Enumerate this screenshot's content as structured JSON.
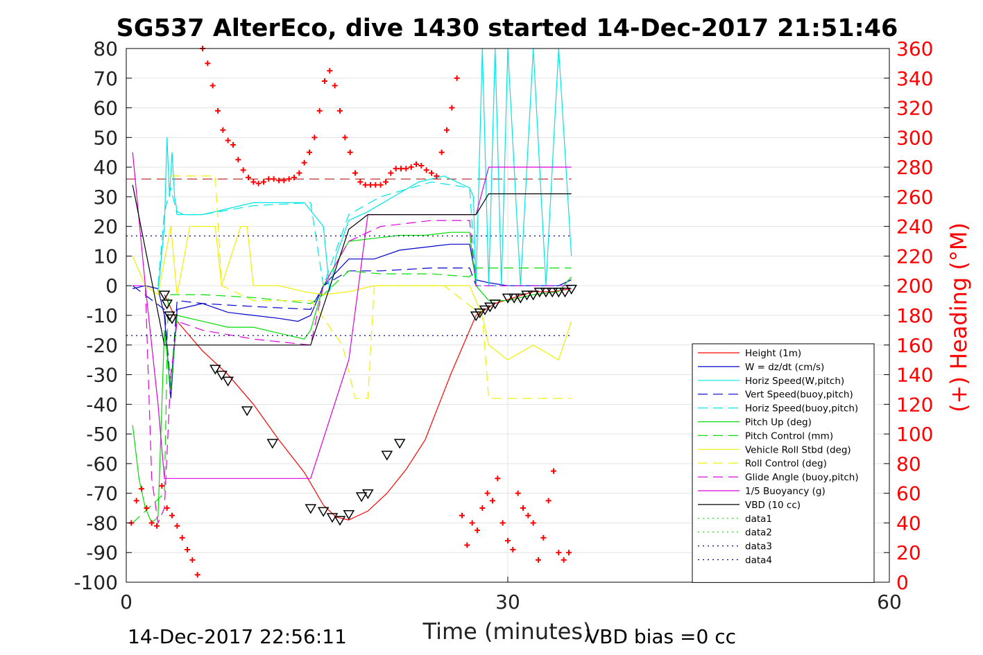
{
  "chart_data": {
    "type": "line",
    "title": "SG537 AlterEco, dive 1430 started 14-Dec-2017 21:51:46",
    "xlabel": "Time (minutes)",
    "ylabel": "",
    "y2label": "(+) Heading (°M)",
    "xlim": [
      0,
      60
    ],
    "ylim": [
      -100,
      80
    ],
    "y2lim": [
      0,
      360
    ],
    "xticks": [
      "0",
      "30",
      "60"
    ],
    "yticks": [
      "80",
      "70",
      "60",
      "50",
      "40",
      "30",
      "20",
      "10",
      "0",
      "-10",
      "-20",
      "-30",
      "-40",
      "-50",
      "-60",
      "-70",
      "-80",
      "-90",
      "-100"
    ],
    "y2ticks": [
      "360",
      "340",
      "320",
      "300",
      "280",
      "260",
      "240",
      "220",
      "200",
      "180",
      "160",
      "140",
      "120",
      "100",
      "80",
      "60",
      "40",
      "20",
      "0"
    ],
    "grid": true,
    "legend_position": "lower-right",
    "footer_left": "14-Dec-2017 22:56:11",
    "footer_right": "VBD bias =0 cc",
    "colors": {
      "red": "#ff0000",
      "blue": "#0000cc",
      "cyan": "#00e5e5",
      "green": "#00dd00",
      "yellow": "#f0f000",
      "magenta": "#dd00dd",
      "black": "#000000",
      "darkred": "#aa0000",
      "navy": "#000088"
    },
    "series": [
      {
        "name": "Height (1m)",
        "color": "#ff0000",
        "dash": "solid",
        "x": [
          3.0,
          4.0,
          6.0,
          8.0,
          10.0,
          12.0,
          14.0,
          15.5,
          16.5,
          17.5,
          19.0,
          20.5,
          22.0,
          23.5,
          25.5,
          27.5,
          29.0,
          30.5,
          32.0,
          33.5,
          35.0
        ],
        "y": [
          -3,
          -12,
          -22,
          -30,
          -40,
          -52,
          -63,
          -74,
          -78,
          -79,
          -76,
          -70,
          -62,
          -52,
          -30,
          -10,
          -6,
          -4,
          -2,
          -2,
          -1
        ]
      },
      {
        "name": "W = dz/dt (cm/s)",
        "color": "#0000cc",
        "dash": "solid",
        "x": [
          0.5,
          1.5,
          2.5,
          3.0,
          3.5,
          4.0,
          6.0,
          8.0,
          10.0,
          12.0,
          13.5,
          14.5,
          15.5,
          17.5,
          19.5,
          21.5,
          23.5,
          25.5,
          27.0,
          27.5,
          28.5,
          30.0,
          32.0,
          34.0,
          35.0
        ],
        "y": [
          -1,
          0,
          -1,
          -10,
          -38,
          -8,
          -6,
          -9,
          -10,
          -11,
          -12,
          -10,
          0,
          9,
          9,
          12,
          13,
          14,
          14,
          2,
          1,
          0,
          0,
          0,
          2
        ]
      },
      {
        "name": "Horiz Speed(W,pitch)",
        "color": "#00e5e5",
        "dash": "solid",
        "x": [
          2.5,
          3.0,
          3.2,
          3.4,
          3.6,
          3.8,
          4.0,
          4.5,
          6.0,
          8.0,
          10.0,
          12.0,
          14.0,
          15.5,
          16.0,
          16.5,
          17.5,
          19.0,
          21.0,
          23.0,
          25.0,
          27.0,
          27.3,
          27.5,
          28.0,
          28.5,
          29.0,
          29.5,
          30.0,
          31.0,
          32.0,
          33.0,
          34.0,
          35.0
        ],
        "y": [
          -2,
          20,
          50,
          30,
          45,
          30,
          25,
          24,
          24,
          26,
          28,
          28,
          28,
          20,
          -2,
          10,
          22,
          25,
          30,
          35,
          37,
          33,
          30,
          0,
          80,
          0,
          80,
          0,
          80,
          0,
          80,
          0,
          80,
          10
        ]
      },
      {
        "name": "Vert Speed(buoy,pitch)",
        "color": "#0000cc",
        "dash": "dash",
        "x": [
          0.5,
          3.0,
          3.5,
          4.0,
          6.0,
          10.0,
          14.5,
          15.5,
          17.5,
          20.0,
          24.0,
          27.0,
          27.5,
          30.0,
          35.0
        ],
        "y": [
          0,
          -8,
          -35,
          -5,
          -6,
          -7,
          -8,
          0,
          5,
          5,
          6,
          6,
          0,
          0,
          0
        ]
      },
      {
        "name": "Horiz Speed(buoy,pitch)",
        "color": "#00e5e5",
        "dash": "dash",
        "x": [
          2.5,
          3.0,
          3.5,
          4.0,
          6.0,
          10.0,
          14.5,
          15.5,
          17.5,
          20.0,
          24.0,
          27.0,
          27.5,
          30.0,
          35.0
        ],
        "y": [
          0,
          25,
          33,
          24,
          24,
          27,
          28,
          0,
          24,
          30,
          35,
          33,
          0,
          0,
          0
        ]
      },
      {
        "name": "Pitch Up (deg)",
        "color": "#00dd00",
        "dash": "solid",
        "x": [
          0.5,
          1.0,
          1.5,
          2.0,
          2.5,
          3.0,
          3.5,
          4.0,
          6.0,
          8.0,
          10.0,
          12.0,
          14.0,
          14.5,
          15.5,
          17.5,
          19.5,
          21.5,
          23.5,
          25.5,
          27.0,
          27.5,
          28.5,
          30.0,
          32.0,
          34.0,
          35.0
        ],
        "y": [
          -47,
          -65,
          -75,
          -80,
          -78,
          -15,
          -35,
          -10,
          -12,
          -14,
          -14,
          -16,
          -18,
          -15,
          0,
          15,
          16,
          17,
          17,
          18,
          18,
          0,
          -5,
          -5,
          -3,
          -2,
          3
        ]
      },
      {
        "name": "Pitch Control (mm)",
        "color": "#00dd00",
        "dash": "dash",
        "x": [
          0.5,
          3.0,
          3.3,
          6.0,
          10.0,
          14.5,
          15.5,
          17.5,
          20.0,
          24.0,
          27.0,
          27.5,
          30.0,
          35.0
        ],
        "y": [
          -80,
          -70,
          -3,
          -3,
          -4,
          -6,
          -3,
          5,
          4,
          4,
          3,
          6,
          6,
          6
        ]
      },
      {
        "name": "Vehicle Roll Stbd (deg)",
        "color": "#f0f000",
        "dash": "solid",
        "x": [
          0.5,
          1.5,
          2.5,
          3.5,
          4.0,
          5.0,
          6.0,
          7.0,
          7.5,
          9.0,
          9.5,
          10.0,
          12.0,
          14.0,
          15.5,
          17.5,
          19.5,
          22.0,
          25.0,
          27.0,
          28.0,
          28.5,
          30.0,
          32.0,
          34.0,
          35.0
        ],
        "y": [
          10,
          0,
          -3,
          20,
          -3,
          20,
          20,
          20,
          0,
          20,
          20,
          0,
          0,
          -2,
          -3,
          -2,
          0,
          0,
          0,
          0,
          -10,
          -20,
          -25,
          -20,
          -25,
          -12
        ]
      },
      {
        "name": "Roll Control (deg)",
        "color": "#f0f000",
        "dash": "dash",
        "x": [
          3.5,
          4.0,
          7.0,
          7.5,
          10.0,
          14.5,
          17.0,
          18.0,
          19.0,
          19.5,
          25.0,
          28.0,
          28.5,
          30.0,
          35.0
        ],
        "y": [
          37,
          37,
          37,
          0,
          -5,
          -5,
          -20,
          -38,
          -38,
          0,
          0,
          -10,
          -38,
          -38,
          -38
        ]
      },
      {
        "name": "Glide Angle (buoy,pitch)",
        "color": "#dd00dd",
        "dash": "dash",
        "x": [
          0.5,
          1.5,
          2.0,
          2.5,
          3.0,
          3.5,
          4.0,
          6.0,
          10.0,
          14.5,
          15.5,
          17.5,
          20.0,
          24.0,
          27.0,
          27.5,
          30.0,
          35.0
        ],
        "y": [
          0,
          0,
          -65,
          -80,
          -75,
          -30,
          -12,
          -15,
          -18,
          -20,
          0,
          15,
          20,
          22,
          22,
          0,
          0,
          0
        ]
      },
      {
        "name": "1/5 Buoyancy (g)",
        "color": "#dd00dd",
        "dash": "solid",
        "x": [
          0.5,
          1.5,
          2.5,
          3.0,
          3.5,
          8.0,
          14.5,
          17.5,
          19.0,
          27.5,
          28.5,
          30.0,
          35.0
        ],
        "y": [
          45,
          0,
          -40,
          -65,
          -65,
          -65,
          -65,
          -25,
          24,
          24,
          40,
          40,
          40
        ]
      },
      {
        "name": "VBD (10 cc)",
        "color": "#000000",
        "dash": "solid",
        "x": [
          0.5,
          3.0,
          8.0,
          14.5,
          17.5,
          19.0,
          27.5,
          28.5,
          30.0,
          35.0
        ],
        "y": [
          34,
          -20,
          -20,
          -20,
          19,
          24,
          24,
          31,
          31,
          31
        ]
      },
      {
        "name": "data1",
        "color": "#00dd00",
        "dash": "dot",
        "x": [],
        "y": []
      },
      {
        "name": "data2",
        "color": "#00dd00",
        "dash": "dot",
        "x": [],
        "y": []
      },
      {
        "name": "data3",
        "color": "#000088",
        "dash": "dot",
        "x": [
          0,
          35
        ],
        "y": [
          16.8,
          16.8
        ]
      },
      {
        "name": "data4",
        "color": "#000088",
        "dash": "dot",
        "x": [
          0,
          35
        ],
        "y": [
          -16.8,
          -16.8
        ]
      }
    ],
    "reference_line": {
      "color": "#aa0000",
      "dash": "dash",
      "x": [
        0,
        35
      ],
      "y2": [
        272,
        272
      ]
    },
    "heading_points": {
      "marker": "+",
      "color": "#ff0000",
      "x": [
        0.4,
        0.8,
        1.2,
        1.6,
        2.0,
        2.4,
        2.8,
        3.2,
        3.6,
        4.0,
        4.4,
        4.8,
        5.2,
        5.6,
        6.0,
        6.4,
        6.8,
        7.2,
        7.6,
        8.0,
        8.4,
        8.8,
        9.2,
        9.6,
        10.0,
        10.4,
        10.8,
        11.2,
        11.6,
        12.0,
        12.4,
        12.8,
        13.2,
        13.6,
        14.0,
        14.4,
        14.8,
        15.2,
        15.6,
        16.0,
        16.4,
        16.8,
        17.2,
        17.6,
        18.0,
        18.4,
        18.8,
        19.2,
        19.6,
        20.0,
        20.4,
        20.8,
        21.2,
        21.6,
        22.0,
        22.4,
        22.8,
        23.2,
        23.6,
        24.0,
        24.4,
        24.8,
        25.2,
        25.6,
        26.0,
        26.4,
        26.8,
        27.2,
        27.6,
        28.0,
        28.4,
        28.8,
        29.2,
        29.6,
        30.0,
        30.4,
        30.8,
        31.2,
        31.6,
        32.0,
        32.4,
        32.8,
        33.2,
        33.6,
        34.0,
        34.4,
        34.8
      ],
      "y": [
        40,
        55,
        63,
        50,
        40,
        38,
        65,
        50,
        45,
        38,
        30,
        22,
        15,
        5,
        360,
        350,
        335,
        318,
        305,
        298,
        295,
        285,
        278,
        273,
        270,
        269,
        270,
        272,
        272,
        271,
        271,
        272,
        273,
        276,
        283,
        290,
        300,
        318,
        338,
        345,
        335,
        318,
        300,
        290,
        276,
        270,
        268,
        268,
        268,
        268,
        270,
        276,
        279,
        279,
        279,
        280,
        282,
        281,
        278,
        276,
        274,
        290,
        305,
        320,
        340,
        45,
        25,
        40,
        35,
        50,
        60,
        55,
        70,
        40,
        28,
        22,
        60,
        50,
        45,
        40,
        15,
        30,
        55,
        75,
        20,
        15,
        20
      ]
    },
    "depth_markers": {
      "x": [
        3.0,
        3.2,
        3.4,
        3.6,
        7.0,
        7.5,
        8.0,
        9.5,
        11.5,
        14.5,
        15.5,
        16.2,
        16.8,
        17.5,
        18.5,
        19.0,
        20.5,
        21.5,
        27.5,
        27.8,
        28.2,
        28.6,
        29.0,
        30.0,
        30.5,
        31.0,
        31.5,
        32.0,
        32.5,
        33.0,
        33.5,
        34.0,
        34.5,
        35.0
      ],
      "y": [
        -3,
        -6,
        -10,
        -11,
        -28,
        -30,
        -32,
        -42,
        -53,
        -75,
        -76,
        -78,
        -79,
        -77,
        -71,
        -70,
        -57,
        -53,
        -10,
        -9,
        -8,
        -7,
        -6,
        -4,
        -4,
        -4,
        -3,
        -3,
        -2,
        -2,
        -2,
        -2,
        -2,
        -1
      ],
      "color": "#000000"
    }
  }
}
